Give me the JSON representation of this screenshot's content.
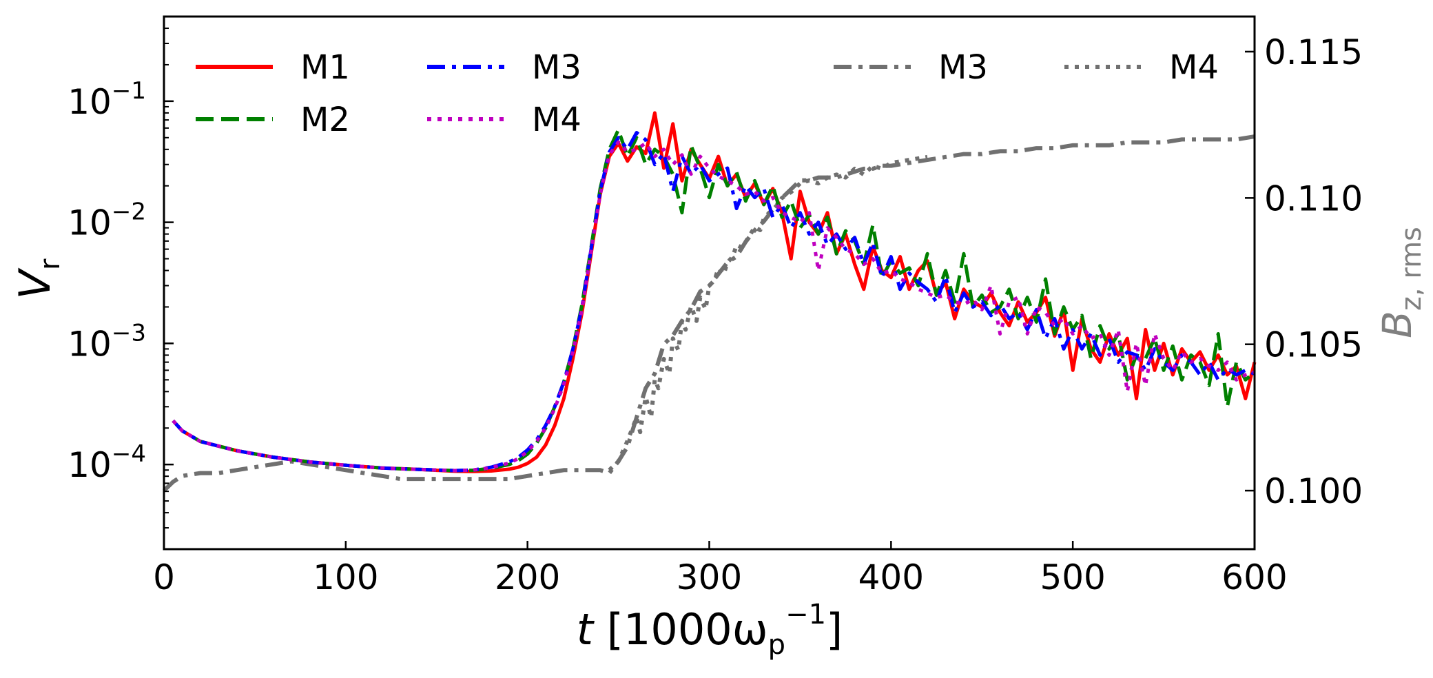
{
  "chart_data": {
    "type": "line",
    "title": "",
    "xlabel_main": "t",
    "xlabel_rest": " [1000ω",
    "xlabel_sub": "p",
    "xlabel_sup": "−1",
    "xlabel_close": "]",
    "ylabel_main": "V",
    "ylabel_sub": "r",
    "y2label_main": "B",
    "y2label_sub": "z, rms",
    "xlim": [
      0,
      600
    ],
    "ylim_log": [
      2e-05,
      0.5
    ],
    "y2lim": [
      0.098,
      0.1162
    ],
    "x_ticks": [
      0,
      100,
      200,
      300,
      400,
      500,
      600
    ],
    "x_tick_labels": [
      "0",
      "100",
      "200",
      "300",
      "400",
      "500",
      "600"
    ],
    "y_ticks": [
      0.0001,
      0.001,
      0.01,
      0.1
    ],
    "y_tick_exponents": [
      "−4",
      "−3",
      "−2",
      "−1"
    ],
    "y_tick_base": "10",
    "y2_ticks": [
      0.1,
      0.105,
      0.11,
      0.115
    ],
    "y2_tick_labels": [
      "0.100",
      "0.105",
      "0.110",
      "0.115"
    ],
    "grid": false,
    "legend_left": [
      {
        "name": "M1",
        "color": "#ff0000",
        "dash": "solid"
      },
      {
        "name": "M2",
        "color": "#008000",
        "dash": "dashed"
      },
      {
        "name": "M3",
        "color": "#0000ff",
        "dash": "dashdot"
      },
      {
        "name": "M4",
        "color": "#bf00bf",
        "dash": "dotted"
      }
    ],
    "legend_right": [
      {
        "name": "M3",
        "color": "#707070",
        "dash": "dashdot"
      },
      {
        "name": "M4",
        "color": "#707070",
        "dash": "dotted"
      }
    ],
    "series": [
      {
        "name": "M1",
        "axis": "left",
        "color": "#ff0000",
        "dash": "solid",
        "x": [
          5,
          10,
          20,
          40,
          60,
          80,
          100,
          120,
          140,
          160,
          170,
          180,
          190,
          195,
          200,
          205,
          210,
          215,
          220,
          225,
          230,
          235,
          240,
          245,
          250,
          255,
          260,
          265,
          270,
          275,
          280,
          285,
          290,
          295,
          300,
          305,
          310,
          315,
          320,
          325,
          330,
          335,
          340,
          345,
          350,
          355,
          360,
          365,
          370,
          375,
          380,
          385,
          390,
          395,
          400,
          405,
          410,
          415,
          420,
          425,
          430,
          435,
          440,
          445,
          450,
          455,
          460,
          465,
          470,
          475,
          480,
          485,
          490,
          495,
          500,
          505,
          510,
          515,
          520,
          525,
          530,
          535,
          540,
          545,
          550,
          555,
          560,
          565,
          570,
          575,
          580,
          585,
          590,
          595,
          600
        ],
        "y": [
          0.00023,
          0.00019,
          0.000155,
          0.00013,
          0.000115,
          0.000105,
          9.85e-05,
          9.35e-05,
          9.1e-05,
          8.8e-05,
          8.75e-05,
          8.85e-05,
          9.15e-05,
          9.5e-05,
          0.000102,
          0.000115,
          0.000145,
          0.00021,
          0.00035,
          0.00075,
          0.0018,
          0.0055,
          0.017,
          0.035,
          0.045,
          0.032,
          0.042,
          0.037,
          0.08,
          0.028,
          0.065,
          0.022,
          0.04,
          0.03,
          0.023,
          0.035,
          0.02,
          0.025,
          0.016,
          0.021,
          0.014,
          0.019,
          0.012,
          0.005,
          0.018,
          0.01,
          0.008,
          0.012,
          0.0055,
          0.008,
          0.0045,
          0.0028,
          0.0063,
          0.004,
          0.0035,
          0.0052,
          0.0028,
          0.004,
          0.0048,
          0.0025,
          0.0032,
          0.0016,
          0.0028,
          0.0022,
          0.002,
          0.0026,
          0.0018,
          0.0014,
          0.0022,
          0.0015,
          0.0018,
          0.0024,
          0.00115,
          0.0019,
          0.0006,
          0.0016,
          0.0009,
          0.0007,
          0.0012,
          0.0008,
          0.0011,
          0.00035,
          0.0013,
          0.0006,
          0.001,
          0.00055,
          0.0009,
          0.0007,
          0.00085,
          0.0006,
          0.0008,
          0.00055,
          0.00065,
          0.00035,
          0.0007
        ]
      },
      {
        "name": "M2",
        "axis": "left",
        "color": "#008000",
        "dash": "dashed",
        "x": [
          5,
          10,
          20,
          40,
          60,
          80,
          100,
          120,
          140,
          160,
          170,
          180,
          190,
          195,
          200,
          205,
          210,
          215,
          220,
          225,
          230,
          235,
          240,
          245,
          250,
          255,
          260,
          265,
          270,
          275,
          280,
          285,
          290,
          295,
          300,
          305,
          310,
          315,
          320,
          325,
          330,
          335,
          340,
          345,
          350,
          355,
          360,
          365,
          370,
          375,
          380,
          385,
          390,
          395,
          400,
          405,
          410,
          415,
          420,
          425,
          430,
          435,
          440,
          445,
          450,
          455,
          460,
          465,
          470,
          475,
          480,
          485,
          490,
          495,
          500,
          505,
          510,
          515,
          520,
          525,
          530,
          535,
          540,
          545,
          550,
          555,
          560,
          565,
          570,
          575,
          580,
          585,
          590,
          595,
          600
        ],
        "y": [
          0.00023,
          0.00019,
          0.000155,
          0.00013,
          0.000115,
          0.000105,
          9.85e-05,
          9.35e-05,
          9.1e-05,
          8.9e-05,
          8.95e-05,
          9.3e-05,
          0.0001,
          0.000108,
          0.000122,
          0.00015,
          0.0002,
          0.0003,
          0.00048,
          0.0009,
          0.0021,
          0.0062,
          0.019,
          0.04,
          0.058,
          0.035,
          0.05,
          0.03,
          0.04,
          0.035,
          0.025,
          0.012,
          0.043,
          0.028,
          0.016,
          0.03,
          0.02,
          0.026,
          0.015,
          0.022,
          0.014,
          0.02,
          0.011,
          0.015,
          0.009,
          0.0115,
          0.008,
          0.011,
          0.0055,
          0.0085,
          0.007,
          0.0045,
          0.0095,
          0.0035,
          0.0048,
          0.0038,
          0.0042,
          0.003,
          0.0055,
          0.0025,
          0.004,
          0.0022,
          0.0055,
          0.002,
          0.0025,
          0.0018,
          0.002,
          0.0028,
          0.0016,
          0.0024,
          0.0015,
          0.0034,
          0.0012,
          0.002,
          0.0013,
          0.0017,
          0.00075,
          0.0014,
          0.0009,
          0.0012,
          0.0005,
          0.0008,
          0.00075,
          0.0011,
          0.0006,
          0.00095,
          0.0005,
          0.0008,
          0.0007,
          0.00045,
          0.0012,
          0.0003,
          0.0007,
          0.0005,
          0.00058
        ]
      },
      {
        "name": "M3",
        "axis": "left",
        "color": "#0000ff",
        "dash": "dashdot",
        "x": [
          5,
          10,
          20,
          40,
          60,
          80,
          100,
          120,
          140,
          160,
          170,
          180,
          190,
          195,
          200,
          205,
          210,
          215,
          220,
          225,
          230,
          235,
          240,
          245,
          250,
          255,
          260,
          265,
          270,
          275,
          280,
          285,
          290,
          295,
          300,
          305,
          310,
          315,
          320,
          325,
          330,
          335,
          340,
          345,
          350,
          355,
          360,
          365,
          370,
          375,
          380,
          385,
          390,
          395,
          400,
          405,
          410,
          415,
          420,
          425,
          430,
          435,
          440,
          445,
          450,
          455,
          460,
          465,
          470,
          475,
          480,
          485,
          490,
          495,
          500,
          505,
          510,
          515,
          520,
          525,
          530,
          535,
          540,
          545,
          550,
          555,
          560,
          565,
          570,
          575,
          580,
          585,
          590,
          595,
          600
        ],
        "y": [
          0.00023,
          0.00019,
          0.000155,
          0.00013,
          0.000115,
          0.000105,
          9.85e-05,
          9.35e-05,
          9.1e-05,
          8.9e-05,
          9e-05,
          9.5e-05,
          0.000105,
          0.000115,
          0.000132,
          0.00016,
          0.00021,
          0.0003,
          0.00048,
          0.0009,
          0.002,
          0.006,
          0.018,
          0.038,
          0.05,
          0.04,
          0.055,
          0.048,
          0.03,
          0.037,
          0.018,
          0.035,
          0.025,
          0.03,
          0.022,
          0.025,
          0.028,
          0.013,
          0.02,
          0.016,
          0.019,
          0.011,
          0.014,
          0.009,
          0.012,
          0.008,
          0.01,
          0.0065,
          0.008,
          0.006,
          0.0075,
          0.0045,
          0.0068,
          0.0035,
          0.0052,
          0.0028,
          0.0038,
          0.0032,
          0.0028,
          0.0022,
          0.0036,
          0.0018,
          0.0026,
          0.002,
          0.0022,
          0.0017,
          0.0021,
          0.0016,
          0.0018,
          0.0013,
          0.0019,
          0.0011,
          0.0016,
          0.0009,
          0.0013,
          0.0009,
          0.0012,
          0.0008,
          0.0011,
          0.0007,
          0.00085,
          0.0008,
          0.0006,
          0.0009,
          0.0007,
          0.0006,
          0.0008,
          0.0007,
          0.00055,
          0.0007,
          0.0005,
          0.00062,
          0.00055,
          0.0006,
          0.00056
        ]
      },
      {
        "name": "M4",
        "axis": "left",
        "color": "#bf00bf",
        "dash": "dotted",
        "x": [
          5,
          10,
          20,
          40,
          60,
          80,
          100,
          120,
          140,
          160,
          170,
          180,
          190,
          195,
          200,
          205,
          210,
          215,
          220,
          225,
          230,
          235,
          240,
          245,
          250,
          255,
          260,
          265,
          270,
          275,
          280,
          285,
          290,
          295,
          300,
          305,
          310,
          315,
          320,
          325,
          330,
          335,
          340,
          345,
          350,
          355,
          360,
          365,
          370,
          375,
          380,
          385,
          390,
          395,
          400,
          405,
          410,
          415,
          420,
          425,
          430,
          435,
          440,
          445,
          450,
          455,
          460,
          465,
          470,
          475,
          480,
          485,
          490,
          495,
          500,
          505,
          510,
          515,
          520,
          525,
          530,
          535,
          540,
          545,
          550,
          555,
          560,
          565,
          570,
          575,
          580,
          585,
          590,
          595,
          600
        ],
        "y": [
          0.00023,
          0.00019,
          0.000155,
          0.00013,
          0.000115,
          0.000105,
          9.85e-05,
          9.35e-05,
          9.1e-05,
          8.9e-05,
          9e-05,
          9.4e-05,
          0.000103,
          0.000112,
          0.000128,
          0.000155,
          0.0002,
          0.00029,
          0.00046,
          0.00085,
          0.0019,
          0.0058,
          0.017,
          0.036,
          0.046,
          0.038,
          0.04,
          0.045,
          0.035,
          0.04,
          0.03,
          0.036,
          0.025,
          0.035,
          0.028,
          0.024,
          0.022,
          0.02,
          0.017,
          0.018,
          0.015,
          0.016,
          0.012,
          0.011,
          0.01,
          0.012,
          0.004,
          0.009,
          0.0075,
          0.006,
          0.0055,
          0.0045,
          0.005,
          0.0038,
          0.004,
          0.0034,
          0.0032,
          0.0028,
          0.0026,
          0.0024,
          0.0025,
          0.0022,
          0.0021,
          0.0023,
          0.0019,
          0.003,
          0.0012,
          0.0022,
          0.0024,
          0.0012,
          0.002,
          0.0018,
          0.0014,
          0.0016,
          0.0012,
          0.0014,
          0.0011,
          0.0012,
          0.0008,
          0.0013,
          0.0004,
          0.001,
          0.00045,
          0.0012,
          0.00075,
          0.0006,
          0.00085,
          0.0007,
          0.00075,
          0.00065,
          0.0006,
          0.0007,
          0.0005,
          0.00055,
          0.00058
        ]
      },
      {
        "name": "M3",
        "axis": "right",
        "color": "#707070",
        "dash": "dashdot",
        "x": [
          0,
          5,
          10,
          20,
          30,
          40,
          50,
          60,
          70,
          80,
          90,
          100,
          110,
          120,
          130,
          140,
          150,
          160,
          170,
          180,
          190,
          200,
          210,
          220,
          230,
          240,
          245,
          250,
          255,
          260,
          265,
          270,
          275,
          280,
          285,
          290,
          295,
          300,
          305,
          310,
          315,
          320,
          325,
          330,
          335,
          340,
          345,
          350,
          355,
          360,
          365,
          370,
          375,
          380,
          385,
          390,
          395,
          400,
          410,
          420,
          430,
          440,
          450,
          460,
          470,
          480,
          490,
          500,
          510,
          520,
          530,
          540,
          550,
          560,
          570,
          580,
          590,
          600
        ],
        "y": [
          0.1,
          0.1003,
          0.1005,
          0.1006,
          0.1006,
          0.1007,
          0.1008,
          0.1009,
          0.101,
          0.1009,
          0.1008,
          0.1007,
          0.1006,
          0.1005,
          0.1004,
          0.1004,
          0.1004,
          0.1004,
          0.1004,
          0.1004,
          0.1004,
          0.1005,
          0.1006,
          0.1007,
          0.1007,
          0.1007,
          0.1006,
          0.101,
          0.1015,
          0.1025,
          0.1035,
          0.104,
          0.105,
          0.1053,
          0.1058,
          0.1062,
          0.1068,
          0.107,
          0.1074,
          0.1078,
          0.108,
          0.1085,
          0.1089,
          0.1092,
          0.1096,
          0.11,
          0.1103,
          0.1106,
          0.1106,
          0.1107,
          0.1107,
          0.1107,
          0.1108,
          0.1109,
          0.111,
          0.111,
          0.1111,
          0.1111,
          0.1112,
          0.1113,
          0.1114,
          0.1115,
          0.1115,
          0.1116,
          0.1116,
          0.1117,
          0.1117,
          0.1118,
          0.1118,
          0.1118,
          0.1119,
          0.1119,
          0.1119,
          0.112,
          0.112,
          0.112,
          0.112,
          0.1121
        ]
      },
      {
        "name": "M4",
        "axis": "right",
        "color": "#707070",
        "dash": "dotted",
        "x": [
          245,
          250,
          255,
          260,
          262,
          265,
          268,
          270,
          272,
          275,
          278,
          280,
          283,
          285,
          287,
          290,
          293,
          295,
          298,
          300,
          303,
          305,
          308,
          310,
          313,
          315,
          318,
          320,
          323,
          325,
          328,
          330,
          333,
          335,
          338,
          340,
          345,
          350,
          355,
          360,
          365,
          370,
          375,
          380,
          385,
          390,
          395,
          400,
          410,
          420
        ],
        "y": [
          0.1007,
          0.101,
          0.1017,
          0.1025,
          0.102,
          0.1032,
          0.1025,
          0.1038,
          0.1035,
          0.1045,
          0.104,
          0.1052,
          0.1048,
          0.1058,
          0.1055,
          0.1063,
          0.1058,
          0.1066,
          0.1062,
          0.107,
          0.1072,
          0.1076,
          0.1074,
          0.1078,
          0.108,
          0.1084,
          0.1083,
          0.1085,
          0.1088,
          0.109,
          0.1089,
          0.1093,
          0.1095,
          0.1096,
          0.1098,
          0.11,
          0.1102,
          0.1105,
          0.1106,
          0.1105,
          0.1107,
          0.1108,
          0.1107,
          0.111,
          0.1108,
          0.1111,
          0.111,
          0.1112,
          0.1113,
          0.1114
        ]
      }
    ]
  }
}
